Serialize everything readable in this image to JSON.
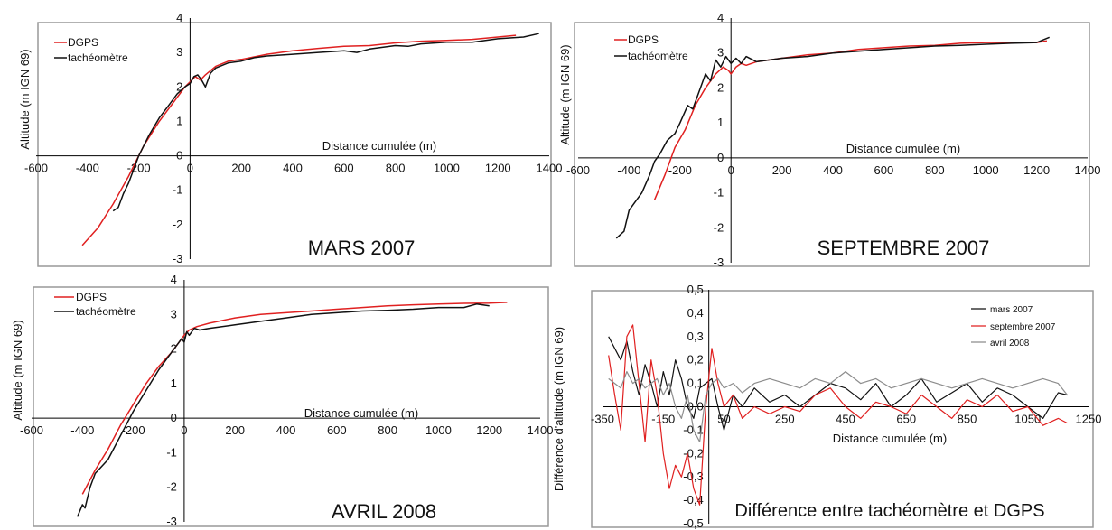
{
  "chart_data": [
    {
      "id": "mars",
      "type": "line",
      "title": "MARS 2007",
      "xlabel": "Distance cumulée (m)",
      "ylabel": "Altitude (m IGN 69)",
      "xlim": [
        -600,
        1400
      ],
      "ylim": [
        -3,
        4
      ],
      "x_ticks": [
        "-600",
        "-400",
        "-200",
        "0",
        "200",
        "400",
        "600",
        "800",
        "1000",
        "1200",
        "1400"
      ],
      "y_ticks": [
        "-3",
        "-2",
        "-1",
        "0",
        "1",
        "2",
        "3",
        "4"
      ],
      "legend_position": "top-left",
      "series": [
        {
          "name": "DGPS",
          "color": "#e02020",
          "x": [
            -420,
            -360,
            -300,
            -240,
            -180,
            -120,
            -60,
            -20,
            0,
            20,
            40,
            60,
            100,
            150,
            200,
            300,
            400,
            500,
            600,
            700,
            800,
            900,
            1000,
            1100,
            1200,
            1270
          ],
          "y": [
            -2.6,
            -2.1,
            -1.4,
            -0.6,
            0.3,
            1.0,
            1.6,
            2.0,
            2.15,
            2.3,
            2.2,
            2.35,
            2.6,
            2.75,
            2.8,
            2.95,
            3.05,
            3.12,
            3.18,
            3.2,
            3.28,
            3.33,
            3.35,
            3.38,
            3.45,
            3.5
          ]
        },
        {
          "name": "tachéomètre",
          "color": "#111111",
          "x": [
            -300,
            -280,
            -260,
            -240,
            -200,
            -160,
            -120,
            -80,
            -50,
            -20,
            0,
            15,
            30,
            45,
            60,
            80,
            100,
            150,
            200,
            250,
            300,
            400,
            500,
            600,
            650,
            700,
            750,
            800,
            850,
            900,
            1000,
            1100,
            1200,
            1300,
            1360
          ],
          "y": [
            -1.6,
            -1.5,
            -1.1,
            -0.8,
            0.0,
            0.6,
            1.1,
            1.5,
            1.8,
            2.0,
            2.1,
            2.3,
            2.35,
            2.2,
            2.0,
            2.4,
            2.55,
            2.7,
            2.75,
            2.85,
            2.9,
            2.95,
            3.0,
            3.05,
            3.0,
            3.1,
            3.15,
            3.2,
            3.18,
            3.25,
            3.3,
            3.3,
            3.4,
            3.45,
            3.55
          ]
        }
      ]
    },
    {
      "id": "septembre",
      "type": "line",
      "title": "SEPTEMBRE 2007",
      "xlabel": "Distance cumulée (m)",
      "ylabel": "Altitude (m IGN 69)",
      "xlim": [
        -600,
        1400
      ],
      "ylim": [
        -3,
        4
      ],
      "x_ticks": [
        "-600",
        "-400",
        "-200",
        "0",
        "200",
        "400",
        "600",
        "800",
        "1000",
        "1200",
        "1400"
      ],
      "y_ticks": [
        "-3",
        "-2",
        "-1",
        "0",
        "1",
        "2",
        "3",
        "4"
      ],
      "legend_position": "top-left",
      "series": [
        {
          "name": "DGPS",
          "color": "#e02020",
          "x": [
            -300,
            -260,
            -220,
            -180,
            -140,
            -100,
            -60,
            -30,
            -10,
            0,
            20,
            40,
            60,
            100,
            200,
            300,
            400,
            500,
            600,
            700,
            800,
            900,
            1000,
            1100,
            1200,
            1240
          ],
          "y": [
            -1.2,
            -0.5,
            0.3,
            0.8,
            1.5,
            2.0,
            2.4,
            2.6,
            2.5,
            2.4,
            2.6,
            2.7,
            2.65,
            2.75,
            2.85,
            2.95,
            3.0,
            3.1,
            3.15,
            3.2,
            3.22,
            3.28,
            3.3,
            3.3,
            3.3,
            3.35
          ]
        },
        {
          "name": "tachéomètre",
          "color": "#111111",
          "x": [
            -450,
            -420,
            -400,
            -380,
            -350,
            -320,
            -300,
            -280,
            -250,
            -220,
            -200,
            -170,
            -150,
            -120,
            -100,
            -80,
            -60,
            -40,
            -20,
            0,
            20,
            40,
            60,
            100,
            200,
            300,
            400,
            500,
            600,
            700,
            800,
            900,
            1000,
            1100,
            1200,
            1250
          ],
          "y": [
            -2.3,
            -2.1,
            -1.5,
            -1.3,
            -1.0,
            -0.5,
            -0.1,
            0.1,
            0.5,
            0.7,
            1.0,
            1.5,
            1.4,
            2.0,
            2.4,
            2.2,
            2.8,
            2.6,
            2.9,
            2.7,
            2.85,
            2.7,
            2.9,
            2.75,
            2.85,
            2.9,
            3.0,
            3.05,
            3.1,
            3.15,
            3.2,
            3.22,
            3.25,
            3.28,
            3.3,
            3.45
          ]
        }
      ]
    },
    {
      "id": "avril",
      "type": "line",
      "title": "AVRIL 2008",
      "xlabel": "Distance cumulée (m)",
      "ylabel": "Altitude (m IGN 69)",
      "xlim": [
        -600,
        1400
      ],
      "ylim": [
        -3,
        4
      ],
      "x_ticks": [
        "-600",
        "-400",
        "-200",
        "0",
        "200",
        "400",
        "600",
        "800",
        "1000",
        "1200",
        "1400"
      ],
      "y_ticks": [
        "-3",
        "-2",
        "-1",
        "0",
        "1",
        "2",
        "3",
        "4"
      ],
      "legend_position": "top-left",
      "series": [
        {
          "name": "DGPS",
          "color": "#e02020",
          "x": [
            -400,
            -350,
            -300,
            -250,
            -200,
            -150,
            -100,
            -50,
            -20,
            0,
            20,
            50,
            100,
            200,
            300,
            400,
            500,
            600,
            700,
            800,
            900,
            1000,
            1100,
            1200,
            1270
          ],
          "y": [
            -2.2,
            -1.5,
            -0.9,
            -0.2,
            0.4,
            1.0,
            1.5,
            1.9,
            2.2,
            2.4,
            2.55,
            2.65,
            2.75,
            2.9,
            3.0,
            3.05,
            3.1,
            3.15,
            3.2,
            3.25,
            3.28,
            3.3,
            3.32,
            3.33,
            3.35
          ]
        },
        {
          "name": "tachéomètre",
          "color": "#111111",
          "x": [
            -420,
            -400,
            -390,
            -370,
            -350,
            -300,
            -250,
            -200,
            -150,
            -100,
            -60,
            -30,
            -10,
            0,
            10,
            20,
            40,
            60,
            100,
            200,
            300,
            400,
            500,
            600,
            700,
            800,
            900,
            1000,
            1100,
            1150,
            1200
          ],
          "y": [
            -2.85,
            -2.5,
            -2.6,
            -2.0,
            -1.6,
            -1.2,
            -0.5,
            0.2,
            0.8,
            1.4,
            1.8,
            2.1,
            2.3,
            2.2,
            2.5,
            2.4,
            2.6,
            2.55,
            2.6,
            2.7,
            2.8,
            2.9,
            3.0,
            3.05,
            3.1,
            3.12,
            3.15,
            3.2,
            3.2,
            3.3,
            3.25
          ]
        }
      ]
    },
    {
      "id": "difference",
      "type": "line",
      "title": "Différence entre tachéomètre et DGPS",
      "xlabel": "Distance cumulée (m)",
      "ylabel": "Différence d'altitude (m IGN 69)",
      "xlim": [
        -350,
        1250
      ],
      "ylim": [
        -0.5,
        0.5
      ],
      "x_ticks": [
        "-350",
        "-150",
        "50",
        "250",
        "450",
        "650",
        "850",
        "1050",
        "1250"
      ],
      "y_ticks": [
        "-0,5",
        "-0,4",
        "-0,3",
        "-0,2",
        "-0,1",
        "0,0",
        "0,1",
        "0,2",
        "0,3",
        "0,4",
        "0,5"
      ],
      "legend_position": "top-right",
      "series": [
        {
          "name": "mars 2007",
          "color": "#111111",
          "x": [
            -330,
            -310,
            -290,
            -270,
            -250,
            -230,
            -210,
            -190,
            -170,
            -150,
            -130,
            -110,
            -90,
            -70,
            -50,
            -30,
            -10,
            10,
            30,
            50,
            80,
            110,
            150,
            200,
            250,
            300,
            350,
            400,
            450,
            500,
            550,
            600,
            650,
            700,
            750,
            800,
            850,
            900,
            950,
            1000,
            1050,
            1100,
            1150,
            1180
          ],
          "y": [
            0.3,
            0.25,
            0.2,
            0.28,
            0.15,
            0.05,
            0.18,
            0.1,
            0.0,
            0.15,
            0.05,
            0.2,
            0.12,
            0.0,
            -0.05,
            0.08,
            0.1,
            0.12,
            0.0,
            -0.1,
            0.05,
            0.0,
            0.08,
            0.02,
            0.05,
            0.0,
            0.05,
            0.1,
            0.08,
            0.03,
            0.1,
            0.0,
            0.05,
            0.12,
            0.02,
            0.06,
            0.1,
            0.02,
            0.08,
            0.05,
            0.0,
            -0.05,
            0.06,
            0.05
          ]
        },
        {
          "name": "septembre 2007",
          "color": "#e02020",
          "x": [
            -330,
            -310,
            -290,
            -270,
            -250,
            -230,
            -210,
            -190,
            -170,
            -150,
            -130,
            -110,
            -90,
            -70,
            -50,
            -30,
            -10,
            10,
            30,
            50,
            80,
            110,
            150,
            200,
            250,
            300,
            350,
            400,
            450,
            500,
            550,
            600,
            650,
            700,
            750,
            800,
            850,
            900,
            950,
            1000,
            1050,
            1100,
            1150,
            1180
          ],
          "y": [
            0.22,
            0.05,
            -0.1,
            0.3,
            0.35,
            0.1,
            -0.15,
            0.2,
            0.05,
            -0.2,
            -0.35,
            -0.25,
            -0.3,
            -0.2,
            -0.35,
            -0.42,
            0.0,
            0.25,
            0.1,
            0.0,
            0.05,
            -0.05,
            0.0,
            -0.03,
            0.0,
            -0.02,
            0.05,
            0.08,
            0.0,
            -0.05,
            0.02,
            0.0,
            -0.03,
            0.05,
            0.0,
            -0.05,
            0.03,
            0.0,
            0.05,
            -0.02,
            0.0,
            -0.08,
            -0.05,
            -0.07
          ]
        },
        {
          "name": "avril 2008",
          "color": "#8c8c8c",
          "x": [
            -330,
            -310,
            -290,
            -270,
            -250,
            -230,
            -210,
            -190,
            -170,
            -150,
            -130,
            -110,
            -90,
            -70,
            -50,
            -30,
            -10,
            10,
            30,
            50,
            80,
            110,
            150,
            200,
            250,
            300,
            350,
            400,
            450,
            500,
            550,
            600,
            650,
            700,
            750,
            800,
            850,
            900,
            950,
            1000,
            1050,
            1100,
            1150,
            1180
          ],
          "y": [
            0.12,
            0.1,
            0.08,
            0.15,
            0.1,
            0.12,
            0.08,
            0.1,
            0.12,
            0.05,
            0.1,
            0.0,
            -0.05,
            0.05,
            -0.1,
            -0.15,
            0.05,
            0.1,
            0.12,
            0.08,
            0.1,
            0.06,
            0.1,
            0.12,
            0.1,
            0.08,
            0.12,
            0.1,
            0.15,
            0.1,
            0.12,
            0.08,
            0.1,
            0.12,
            0.1,
            0.08,
            0.1,
            0.12,
            0.1,
            0.08,
            0.1,
            0.12,
            0.1,
            0.05
          ]
        }
      ]
    }
  ]
}
